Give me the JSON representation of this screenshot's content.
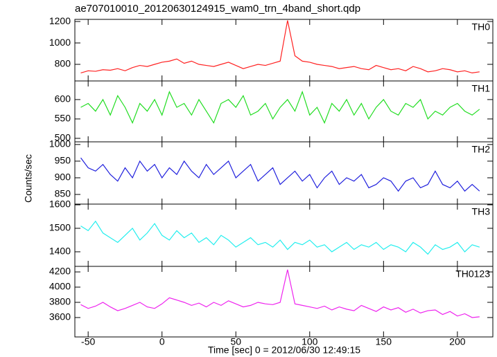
{
  "chart_data": [
    {
      "type": "line",
      "title": "ae707010010_20120630124915_wam0_trn_4band_short.qdp",
      "label": "TH0",
      "color": "#ff2020",
      "x": [
        -55,
        -50,
        -45,
        -40,
        -35,
        -30,
        -25,
        -20,
        -15,
        -10,
        -5,
        0,
        5,
        10,
        15,
        20,
        25,
        30,
        35,
        40,
        45,
        50,
        55,
        60,
        65,
        70,
        75,
        80,
        85,
        90,
        95,
        100,
        105,
        110,
        115,
        120,
        125,
        130,
        135,
        140,
        145,
        150,
        155,
        160,
        165,
        170,
        175,
        180,
        185,
        190,
        195,
        200,
        205,
        210,
        215
      ],
      "values": [
        720,
        740,
        735,
        750,
        745,
        760,
        740,
        770,
        790,
        780,
        800,
        820,
        830,
        850,
        810,
        830,
        800,
        790,
        780,
        800,
        820,
        790,
        760,
        780,
        800,
        790,
        810,
        830,
        1210,
        880,
        830,
        820,
        800,
        790,
        780,
        760,
        770,
        780,
        760,
        750,
        790,
        770,
        750,
        760,
        740,
        780,
        760,
        730,
        740,
        760,
        750,
        730,
        740,
        720,
        730
      ],
      "xlim": [
        -59,
        224
      ],
      "ylim": [
        645,
        1220
      ],
      "yticks": [
        800,
        1000,
        1200
      ]
    },
    {
      "type": "line",
      "label": "TH1",
      "color": "#22dd22",
      "x": [
        -55,
        -50,
        -45,
        -40,
        -35,
        -30,
        -25,
        -20,
        -15,
        -10,
        -5,
        0,
        5,
        10,
        15,
        20,
        25,
        30,
        35,
        40,
        45,
        50,
        55,
        60,
        65,
        70,
        75,
        80,
        85,
        90,
        95,
        100,
        105,
        110,
        115,
        120,
        125,
        130,
        135,
        140,
        145,
        150,
        155,
        160,
        165,
        170,
        175,
        180,
        185,
        190,
        195,
        200,
        205,
        210,
        215
      ],
      "values": [
        580,
        590,
        570,
        600,
        560,
        610,
        580,
        540,
        590,
        570,
        600,
        560,
        620,
        580,
        590,
        560,
        600,
        570,
        540,
        590,
        600,
        580,
        610,
        560,
        570,
        590,
        550,
        580,
        600,
        570,
        620,
        560,
        580,
        540,
        590,
        570,
        600,
        560,
        590,
        550,
        580,
        600,
        570,
        560,
        590,
        580,
        600,
        550,
        570,
        560,
        580,
        590,
        570,
        560,
        575
      ],
      "xlim": [
        -59,
        224
      ],
      "ylim": [
        491,
        648
      ],
      "yticks": [
        500,
        550,
        600
      ]
    },
    {
      "type": "line",
      "label": "TH2",
      "y_label": "Counts/sec",
      "color": "#2020dd",
      "x": [
        -55,
        -50,
        -45,
        -40,
        -35,
        -30,
        -25,
        -20,
        -15,
        -10,
        -5,
        0,
        5,
        10,
        15,
        20,
        25,
        30,
        35,
        40,
        45,
        50,
        55,
        60,
        65,
        70,
        75,
        80,
        85,
        90,
        95,
        100,
        105,
        110,
        115,
        120,
        125,
        130,
        135,
        140,
        145,
        150,
        155,
        160,
        165,
        170,
        175,
        180,
        185,
        190,
        195,
        200,
        205,
        210,
        215
      ],
      "values": [
        960,
        930,
        920,
        940,
        910,
        890,
        930,
        900,
        950,
        920,
        940,
        900,
        930,
        910,
        950,
        920,
        900,
        940,
        910,
        930,
        950,
        900,
        920,
        940,
        890,
        910,
        930,
        880,
        900,
        920,
        890,
        910,
        870,
        900,
        920,
        880,
        900,
        890,
        910,
        870,
        880,
        900,
        890,
        860,
        890,
        900,
        870,
        880,
        920,
        880,
        870,
        890,
        860,
        880,
        860
      ],
      "xlim": [
        -59,
        224
      ],
      "ylim": [
        821,
        1008
      ],
      "yticks": [
        850,
        900,
        950,
        1000
      ]
    },
    {
      "type": "line",
      "label": "TH3",
      "color": "#22eeee",
      "x": [
        -55,
        -50,
        -45,
        -40,
        -35,
        -30,
        -25,
        -20,
        -15,
        -10,
        -5,
        0,
        5,
        10,
        15,
        20,
        25,
        30,
        35,
        40,
        45,
        50,
        55,
        60,
        65,
        70,
        75,
        80,
        85,
        90,
        95,
        100,
        105,
        110,
        115,
        120,
        125,
        130,
        135,
        140,
        145,
        150,
        155,
        160,
        165,
        170,
        175,
        180,
        185,
        190,
        195,
        200,
        205,
        210,
        215
      ],
      "values": [
        1510,
        1490,
        1530,
        1480,
        1460,
        1440,
        1470,
        1500,
        1450,
        1480,
        1520,
        1470,
        1450,
        1490,
        1460,
        1480,
        1440,
        1460,
        1430,
        1470,
        1450,
        1420,
        1440,
        1460,
        1430,
        1440,
        1420,
        1450,
        1410,
        1440,
        1430,
        1450,
        1420,
        1430,
        1400,
        1420,
        1440,
        1410,
        1430,
        1420,
        1440,
        1410,
        1430,
        1420,
        1400,
        1440,
        1420,
        1390,
        1430,
        1410,
        1420,
        1440,
        1400,
        1430,
        1420
      ],
      "xlim": [
        -59,
        224
      ],
      "ylim": [
        1338,
        1603
      ],
      "yticks": [
        1400,
        1500,
        1600
      ]
    },
    {
      "type": "line",
      "label": "TH0123",
      "x_label": "Time [sec] 0 = 2012/06/30 12:49:15",
      "color": "#ee22ee",
      "x": [
        -55,
        -50,
        -45,
        -40,
        -35,
        -30,
        -25,
        -20,
        -15,
        -10,
        -5,
        0,
        5,
        10,
        15,
        20,
        25,
        30,
        35,
        40,
        45,
        50,
        55,
        60,
        65,
        70,
        75,
        80,
        85,
        90,
        95,
        100,
        105,
        110,
        115,
        120,
        125,
        130,
        135,
        140,
        145,
        150,
        155,
        160,
        165,
        170,
        175,
        180,
        185,
        190,
        195,
        200,
        205,
        210,
        215
      ],
      "values": [
        3770,
        3720,
        3750,
        3800,
        3740,
        3690,
        3720,
        3760,
        3800,
        3740,
        3720,
        3780,
        3860,
        3830,
        3800,
        3760,
        3790,
        3740,
        3800,
        3760,
        3820,
        3780,
        3740,
        3760,
        3800,
        3780,
        3770,
        3800,
        4230,
        3780,
        3760,
        3740,
        3720,
        3750,
        3700,
        3740,
        3710,
        3690,
        3760,
        3720,
        3680,
        3740,
        3700,
        3730,
        3670,
        3710,
        3660,
        3690,
        3700,
        3640,
        3680,
        3620,
        3650,
        3600,
        3610
      ],
      "xlim": [
        -59,
        224
      ],
      "ylim": [
        3345,
        4273
      ],
      "yticks": [
        3600,
        3800,
        4000,
        4200
      ],
      "xticks": [
        -50,
        0,
        50,
        100,
        150,
        200
      ]
    }
  ]
}
